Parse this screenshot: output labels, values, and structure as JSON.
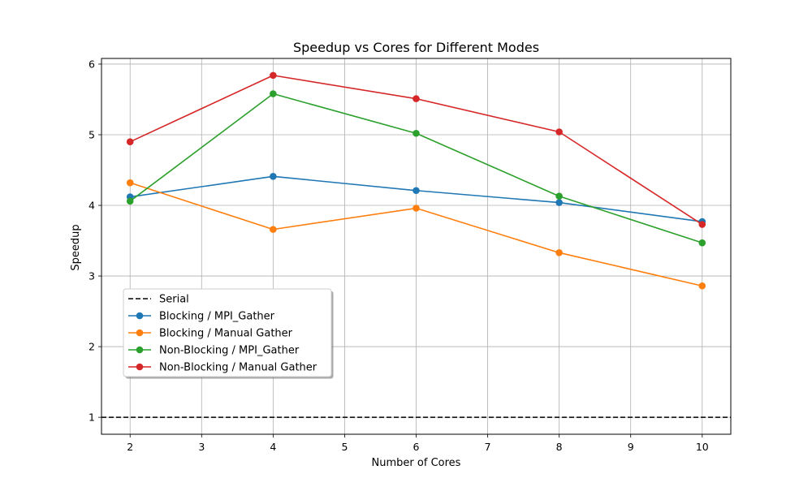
{
  "chart_data": {
    "type": "line",
    "title": "Speedup vs Cores for Different Modes",
    "xlabel": "Number of Cores",
    "ylabel": "Speedup",
    "xlim": [
      1.6,
      10.4
    ],
    "ylim": [
      0.76,
      6.08
    ],
    "xticks": [
      2,
      3,
      4,
      5,
      6,
      7,
      8,
      9,
      10
    ],
    "yticks": [
      1,
      2,
      3,
      4,
      5,
      6
    ],
    "grid": true,
    "legend_position": "lower-left",
    "x": [
      2,
      4,
      6,
      8,
      10
    ],
    "reference_line": {
      "name": "Serial",
      "y": 1,
      "color": "#000000",
      "style": "dashed"
    },
    "series": [
      {
        "name": "Blocking / MPI_Gather",
        "color": "#1f77b4",
        "values": [
          4.12,
          4.41,
          4.21,
          4.04,
          3.77
        ]
      },
      {
        "name": "Blocking / Manual Gather",
        "color": "#ff7f0e",
        "values": [
          4.32,
          3.66,
          3.96,
          3.33,
          2.86
        ]
      },
      {
        "name": "Non-Blocking / MPI_Gather",
        "color": "#2ca02c",
        "values": [
          4.06,
          5.58,
          5.02,
          4.13,
          3.47
        ]
      },
      {
        "name": "Non-Blocking / Manual Gather",
        "color": "#d62728",
        "values": [
          4.9,
          5.84,
          5.51,
          5.04,
          3.73
        ]
      }
    ]
  }
}
